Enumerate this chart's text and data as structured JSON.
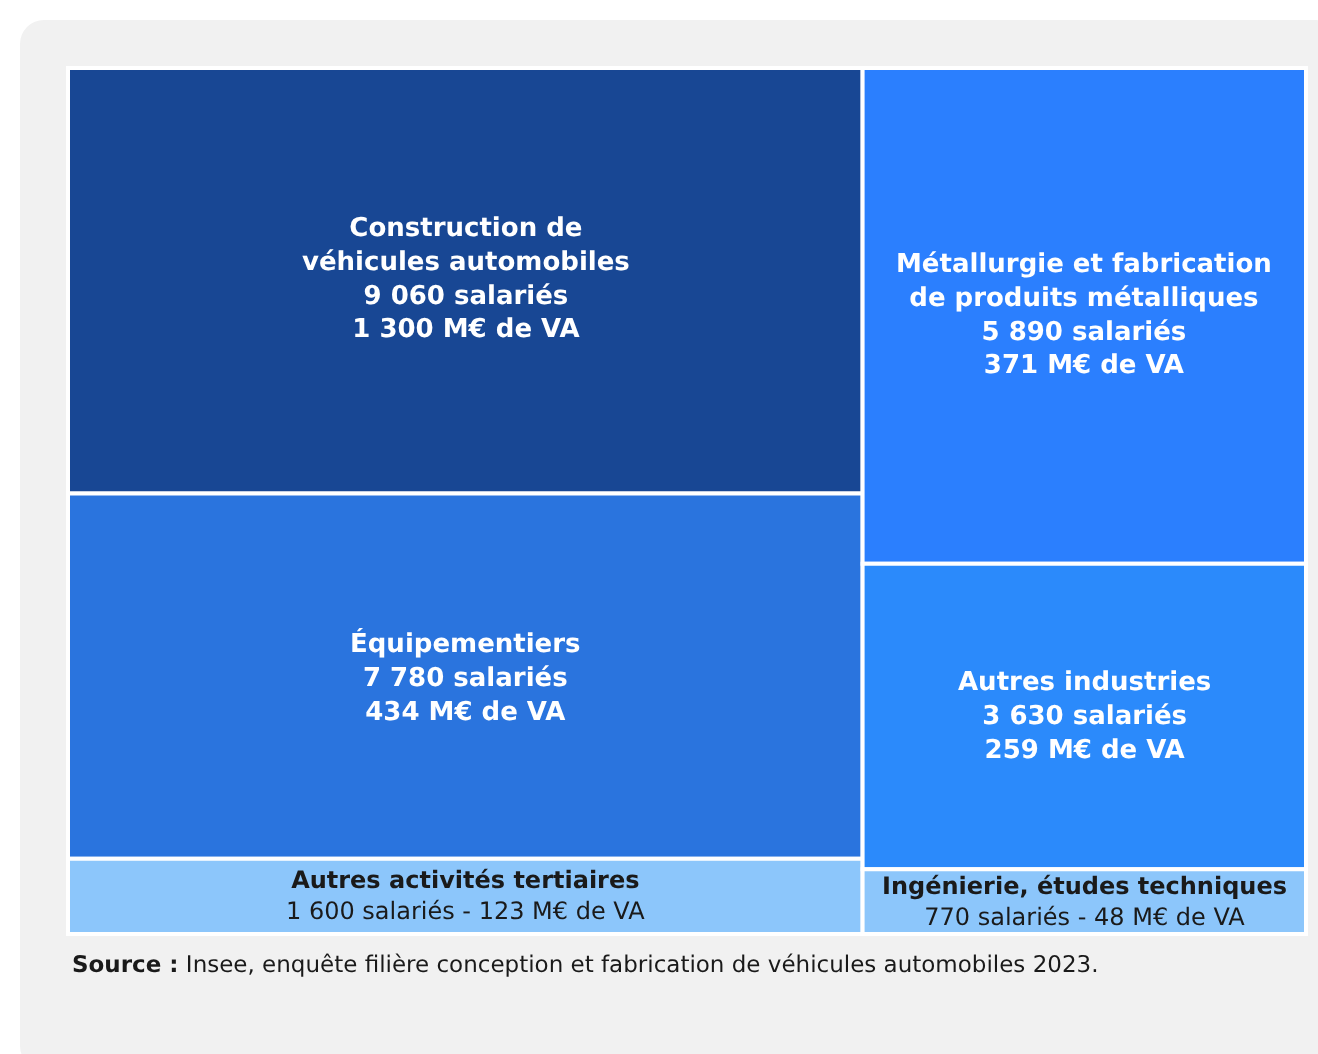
{
  "chart_data": {
    "type": "other",
    "categories": [
      "Construction de véhicules automobiles",
      "Équipementiers",
      "Autres activités tertiaires",
      "Métallurgie et fabrication de produits métalliques",
      "Autres industries",
      "Ingénierie, études techniques"
    ],
    "colors": [
      "#184794",
      "#2a74de",
      "#8cc6fb",
      "#2b7ffe",
      "#2b8afb",
      "#8cc6fb"
    ],
    "values": [
      9060,
      7780,
      1600,
      5890,
      3630,
      770
    ],
    "value_labels": [
      "9 060 salariés\n1 300 M€ de VA",
      "7 780 salariés\n434 M€ de VA",
      "1 600 salariés - 123 M€ de VA",
      "5 890 salariés\n371 M€ de VA",
      "3 630 salariés\n259 M€ de VA",
      "770 salariés - 48 M€ de VA"
    ],
    "annotations": [
      "Source : Insee, enquête filière conception et fabrication de véhicules automobiles 2023."
    ]
  }
}
